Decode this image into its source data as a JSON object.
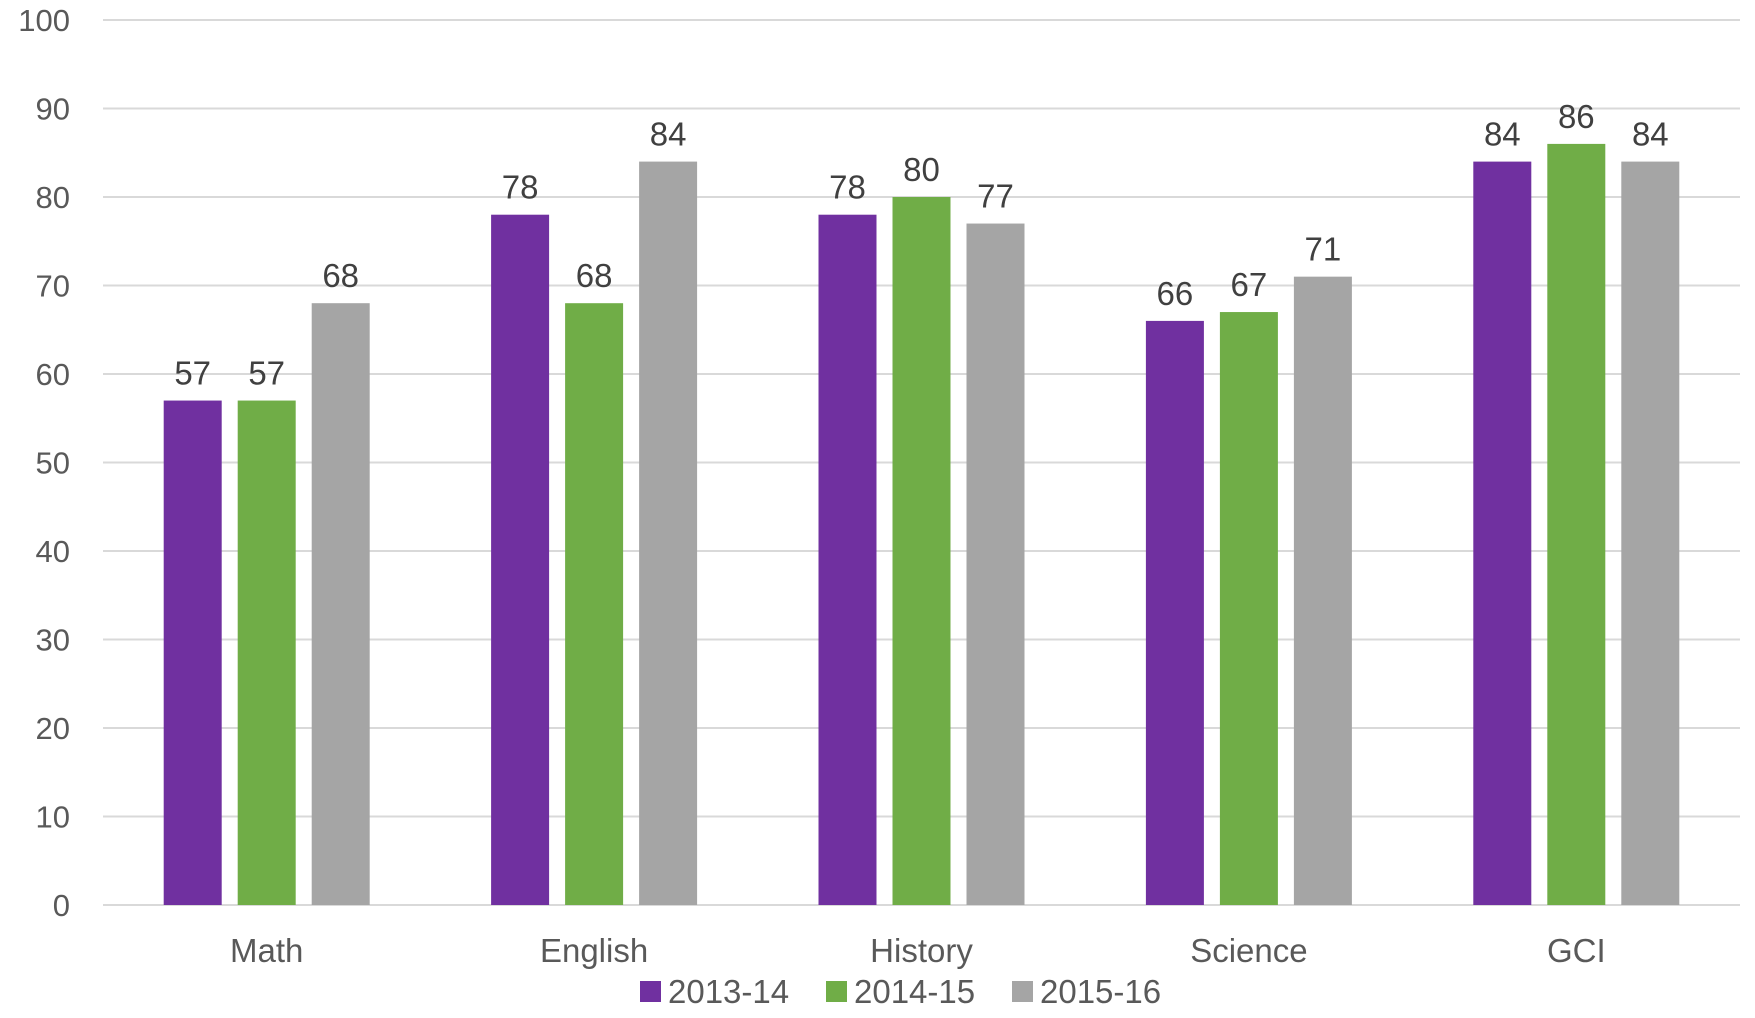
{
  "chart_data": {
    "type": "bar",
    "title": "",
    "xlabel": "",
    "ylabel": "",
    "categories": [
      "Math",
      "English",
      "History",
      "Science",
      "GCI"
    ],
    "series": [
      {
        "name": "2013-14",
        "color": "#7030a0",
        "values": [
          57,
          78,
          78,
          66,
          84
        ]
      },
      {
        "name": "2014-15",
        "color": "#70ad47",
        "values": [
          57,
          68,
          80,
          67,
          86
        ]
      },
      {
        "name": "2015-16",
        "color": "#a5a5a5",
        "values": [
          68,
          84,
          77,
          71,
          84
        ]
      }
    ],
    "ylim": [
      0,
      100
    ],
    "yticks": [
      0,
      10,
      20,
      30,
      40,
      50,
      60,
      70,
      80,
      90,
      100
    ],
    "grid": true,
    "legend_position": "bottom",
    "data_labels": true
  }
}
